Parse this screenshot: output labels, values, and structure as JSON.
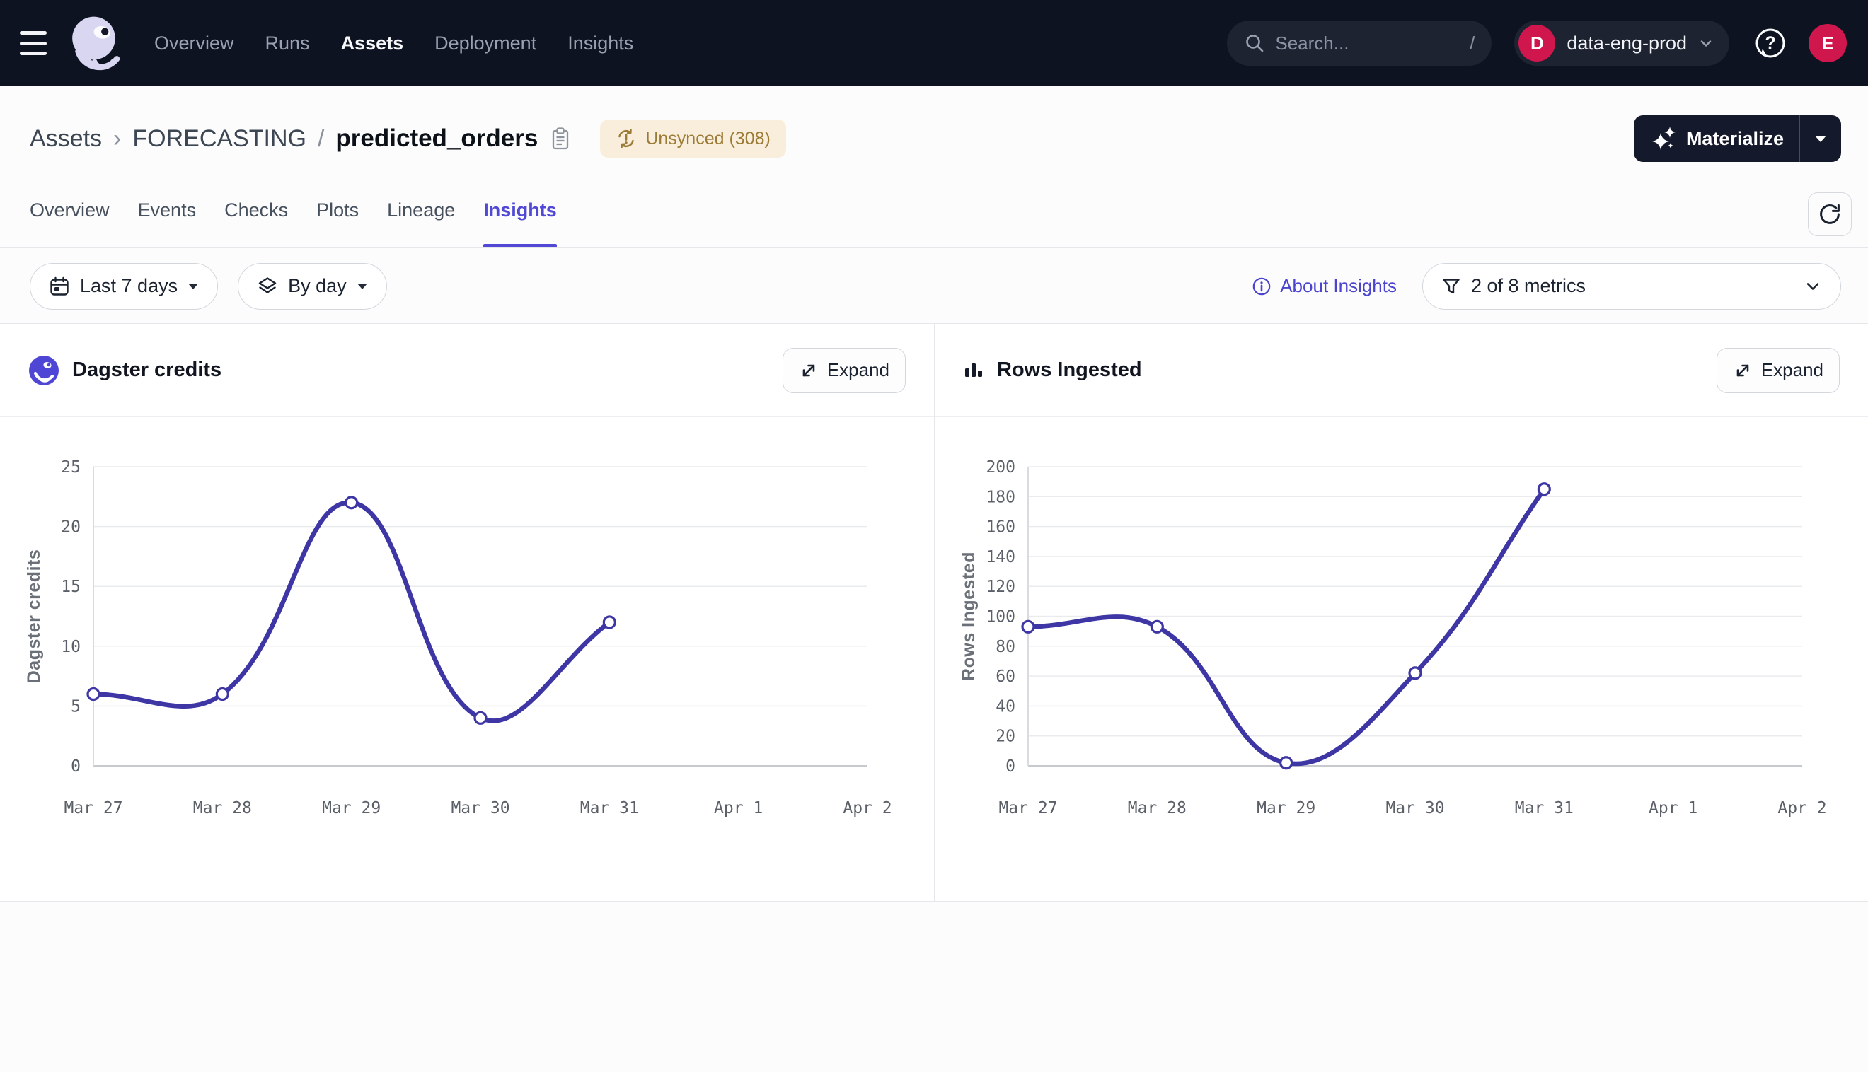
{
  "topbar": {
    "nav": [
      {
        "label": "Overview",
        "active": false
      },
      {
        "label": "Runs",
        "active": false
      },
      {
        "label": "Assets",
        "active": true
      },
      {
        "label": "Deployment",
        "active": false
      },
      {
        "label": "Insights",
        "active": false
      }
    ],
    "search": {
      "placeholder": "Search...",
      "shortcut_hint": "/"
    },
    "deployment": {
      "initial": "D",
      "name": "data-eng-prod"
    },
    "user_avatar_initial": "E"
  },
  "asset_header": {
    "breadcrumb": {
      "root": "Assets",
      "chevron": "›",
      "group": "FORECASTING",
      "slash": "/",
      "asset_name": "predicted_orders"
    },
    "sync_badge": {
      "label": "Unsynced (308)"
    },
    "materialize": {
      "label": "Materialize"
    }
  },
  "tabs": [
    {
      "label": "Overview",
      "active": false
    },
    {
      "label": "Events",
      "active": false
    },
    {
      "label": "Checks",
      "active": false
    },
    {
      "label": "Plots",
      "active": false
    },
    {
      "label": "Lineage",
      "active": false
    },
    {
      "label": "Insights",
      "active": true
    }
  ],
  "filters": {
    "time_range": {
      "label": "Last 7 days"
    },
    "granularity": {
      "label": "By day"
    },
    "about_link": {
      "label": "About Insights"
    },
    "metrics_select": {
      "label": "2 of 8 metrics"
    }
  },
  "panels": {
    "expand_label": "Expand"
  },
  "colors": {
    "accent": "#5149D5",
    "chart_line": "#3D36A4",
    "topbar_bg": "#0E1322",
    "crimson": "#CF174E",
    "badge_bg": "#F8EEDB",
    "badge_text": "#9C7B36"
  },
  "chart_data": [
    {
      "type": "line",
      "title": "Dagster credits",
      "ylabel": "Dagster credits",
      "xlabel": "",
      "categories": [
        "Mar 27",
        "Mar 28",
        "Mar 29",
        "Mar 30",
        "Mar 31",
        "Apr 1",
        "Apr 2"
      ],
      "values": [
        6,
        6,
        22,
        4,
        12
      ],
      "yticks": [
        0,
        5,
        10,
        15,
        20,
        25
      ],
      "ylim": [
        0,
        25
      ],
      "grid": "horizontal",
      "legend": "none",
      "marker": "open-circle",
      "line_color": "#3D36A4"
    },
    {
      "type": "line",
      "title": "Rows Ingested",
      "ylabel": "Rows Ingested",
      "xlabel": "",
      "categories": [
        "Mar 27",
        "Mar 28",
        "Mar 29",
        "Mar 30",
        "Mar 31",
        "Apr 1",
        "Apr 2"
      ],
      "values": [
        93,
        93,
        2,
        62,
        185
      ],
      "yticks": [
        0,
        20,
        40,
        60,
        80,
        100,
        120,
        140,
        160,
        180,
        200
      ],
      "ylim": [
        0,
        200
      ],
      "grid": "horizontal",
      "legend": "none",
      "marker": "open-circle",
      "line_color": "#3D36A4"
    }
  ]
}
